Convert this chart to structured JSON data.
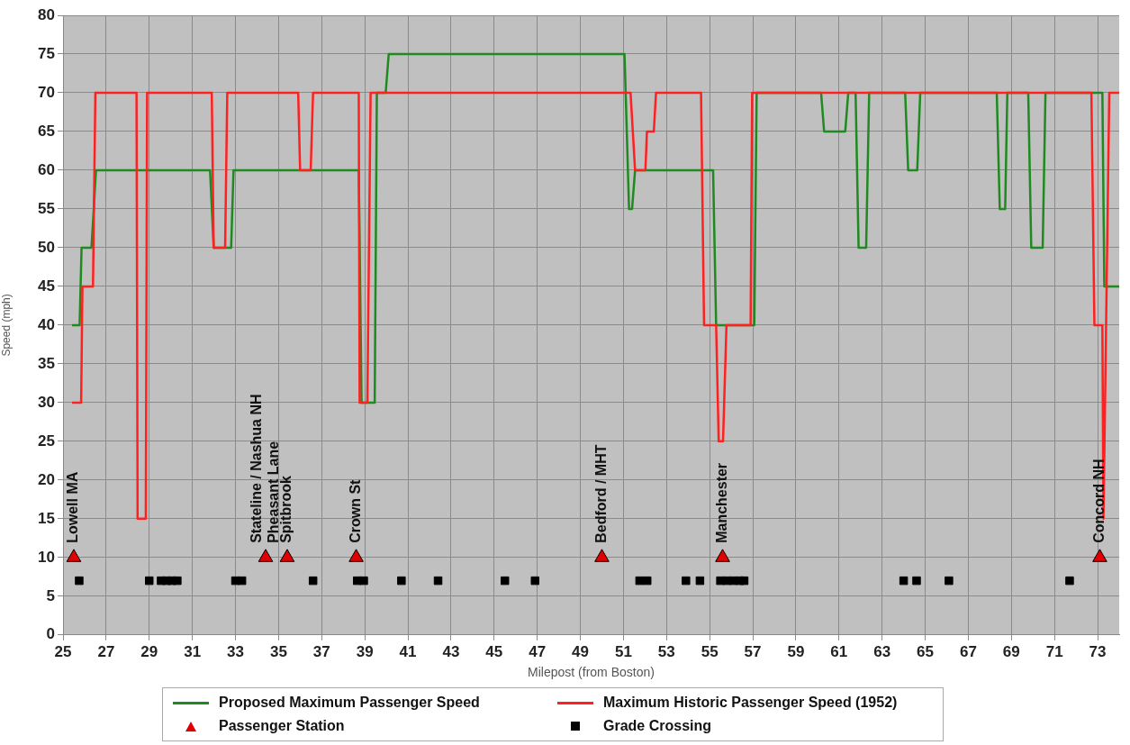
{
  "chart_data": {
    "type": "line",
    "xlabel": "Milepost (from Boston)",
    "ylabel": "Speed (mph)",
    "xlim": [
      25,
      74
    ],
    "xticks": [
      25,
      27,
      29,
      31,
      33,
      35,
      37,
      39,
      41,
      43,
      45,
      47,
      49,
      51,
      53,
      55,
      57,
      59,
      61,
      63,
      65,
      67,
      69,
      71,
      73
    ],
    "ylim": [
      0,
      80
    ],
    "yticks": [
      0,
      5,
      10,
      15,
      20,
      25,
      30,
      35,
      40,
      45,
      50,
      55,
      60,
      65,
      70,
      75,
      80
    ],
    "grid": true,
    "legend": "bottom",
    "line_style": "solid",
    "series": [
      {
        "name": "Proposed Maximum Passenger Speed",
        "color": "#1f8a1f",
        "marker": "none",
        "x": [
          25.42,
          25.77,
          25.86,
          26.32,
          26.53,
          31.82,
          31.99,
          32.8,
          32.91,
          38.72,
          38.85,
          39.46,
          39.56,
          39.97,
          40.11,
          51.05,
          51.26,
          51.4,
          51.54,
          55.16,
          55.3,
          57.07,
          57.18,
          60.17,
          60.31,
          61.29,
          61.43,
          61.77,
          61.91,
          62.26,
          62.4,
          64.07,
          64.21,
          64.63,
          64.77,
          68.32,
          68.46,
          68.71,
          68.81,
          69.78,
          69.92,
          70.45,
          70.58,
          73.22,
          73.31,
          74
        ],
        "values": [
          40,
          40,
          50,
          50,
          60,
          60,
          50,
          50,
          60,
          60,
          30,
          30,
          70,
          70,
          75,
          75,
          55,
          55,
          60,
          60,
          40,
          40,
          70,
          70,
          65,
          65,
          70,
          70,
          50,
          50,
          70,
          70,
          60,
          60,
          70,
          70,
          55,
          55,
          70,
          70,
          50,
          50,
          70,
          70,
          45,
          45
        ]
      },
      {
        "name": "Maximum Historic Passenger Speed (1952)",
        "color": "#ff2020",
        "marker": "none",
        "x": [
          25.42,
          25.84,
          25.9,
          26.39,
          26.5,
          28.41,
          28.46,
          28.84,
          28.9,
          31.9,
          31.99,
          32.52,
          32.62,
          35.91,
          36.0,
          36.49,
          36.6,
          38.72,
          38.76,
          39.12,
          39.27,
          51.33,
          51.54,
          52.02,
          52.09,
          52.41,
          52.51,
          54.6,
          54.74,
          55.3,
          55.42,
          55.62,
          55.78,
          56.9,
          56.97,
          72.71,
          72.85,
          73.22,
          73.27,
          73.54,
          74
        ],
        "values": [
          30,
          30,
          45,
          45,
          70,
          70,
          15,
          15,
          70,
          70,
          50,
          50,
          70,
          70,
          60,
          60,
          70,
          70,
          30,
          30,
          70,
          70,
          60,
          60,
          65,
          65,
          70,
          70,
          40,
          40,
          25,
          25,
          40,
          40,
          70,
          70,
          40,
          40,
          15,
          70,
          70
        ]
      },
      {
        "type": "scatter",
        "name": "Passenger Station",
        "color": "#e00000",
        "marker": "triangle",
        "x": [
          25.5,
          34.4,
          35.4,
          38.6,
          50.0,
          55.6,
          73.1
        ],
        "values": [
          10,
          10,
          10,
          10,
          10,
          10,
          10
        ]
      },
      {
        "type": "scatter",
        "name": "Grade Crossing",
        "color": "#000000",
        "marker": "square",
        "x": [
          25.75,
          29.0,
          29.55,
          29.8,
          30.05,
          30.3,
          33.0,
          33.3,
          36.6,
          38.65,
          38.95,
          40.7,
          42.4,
          45.5,
          46.9,
          51.75,
          52.1,
          53.9,
          54.55,
          55.5,
          55.8,
          56.1,
          56.4,
          56.6,
          64.0,
          64.6,
          66.1,
          71.7
        ],
        "values": [
          7,
          7,
          7,
          7,
          7,
          7,
          7,
          7,
          7,
          7,
          7,
          7,
          7,
          7,
          7,
          7,
          7,
          7,
          7,
          7,
          7,
          7,
          7,
          7,
          7,
          7,
          7,
          7
        ]
      }
    ],
    "annotations": [
      {
        "text": "Lowell MA",
        "x": 25.5,
        "y": 10
      },
      {
        "text": "Stateline / Nashua NH",
        "x": 34.4,
        "y": 10
      },
      {
        "text": "Pheasant Lane",
        "x": 34.4,
        "y": 10
      },
      {
        "text": "Spitbrook",
        "x": 35.4,
        "y": 10
      },
      {
        "text": "Crown St",
        "x": 38.6,
        "y": 10
      },
      {
        "text": "Bedford / MHT",
        "x": 50.0,
        "y": 10
      },
      {
        "text": "Manchester",
        "x": 55.6,
        "y": 10
      },
      {
        "text": "Concord NH",
        "x": 73.1,
        "y": 10
      }
    ]
  }
}
